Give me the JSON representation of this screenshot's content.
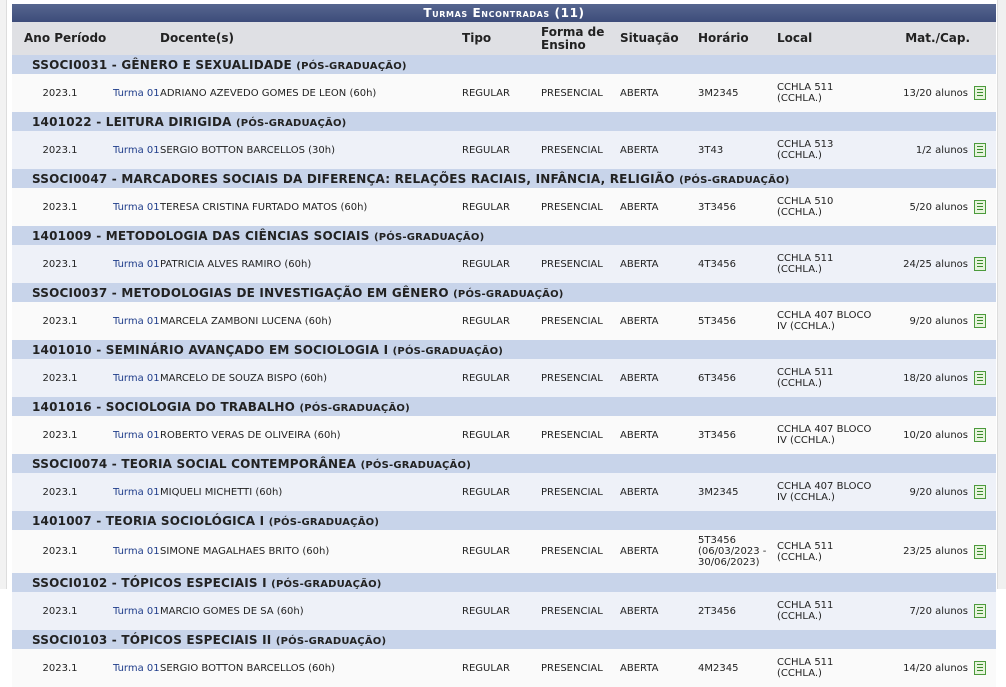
{
  "title": "Turmas Encontradas (11)",
  "headers": {
    "ano": "Ano Período",
    "docente": "Docente(s)",
    "tipo": "Tipo",
    "forma": "Forma de Ensino",
    "situacao": "Situação",
    "horario": "Horário",
    "local": "Local",
    "mat": "Mat./Cap."
  },
  "icon": "report-icon",
  "groups": [
    {
      "name": "SSOCI0031 - GÊNERO E SEXUALIDADE",
      "nivel": "(PÓS-GRADUAÇÃO)",
      "row": {
        "ano": "2023.1",
        "turma": "Turma 01",
        "docente": "ADRIANO AZEVEDO GOMES DE LEON (60h)",
        "tipo": "REGULAR",
        "forma": "PRESENCIAL",
        "situacao": "ABERTA",
        "horario": "3M2345",
        "local": "CCHLA 511 (CCHLA.)",
        "mat": "13/20 alunos"
      }
    },
    {
      "name": "1401022 - LEITURA DIRIGIDA",
      "nivel": "(PÓS-GRADUAÇÃO)",
      "row": {
        "ano": "2023.1",
        "turma": "Turma 01",
        "docente": "SERGIO BOTTON BARCELLOS (30h)",
        "tipo": "REGULAR",
        "forma": "PRESENCIAL",
        "situacao": "ABERTA",
        "horario": "3T43",
        "local": "CCHLA 513 (CCHLA.)",
        "mat": "1/2 alunos"
      }
    },
    {
      "name": "SSOCI0047 - MARCADORES SOCIAIS DA DIFERENÇA: RELAÇÕES RACIAIS, INFÂNCIA, RELIGIÃO",
      "nivel": "(PÓS-GRADUAÇÃO)",
      "row": {
        "ano": "2023.1",
        "turma": "Turma 01",
        "docente": "TERESA CRISTINA FURTADO MATOS (60h)",
        "tipo": "REGULAR",
        "forma": "PRESENCIAL",
        "situacao": "ABERTA",
        "horario": "3T3456",
        "local": "CCHLA 510 (CCHLA.)",
        "mat": "5/20 alunos"
      }
    },
    {
      "name": "1401009 - METODOLOGIA DAS CIÊNCIAS SOCIAIS",
      "nivel": "(PÓS-GRADUAÇÃO)",
      "row": {
        "ano": "2023.1",
        "turma": "Turma 01",
        "docente": "PATRICIA ALVES RAMIRO (60h)",
        "tipo": "REGULAR",
        "forma": "PRESENCIAL",
        "situacao": "ABERTA",
        "horario": "4T3456",
        "local": "CCHLA 511 (CCHLA.)",
        "mat": "24/25 alunos"
      }
    },
    {
      "name": "SSOCI0037 - METODOLOGIAS DE INVESTIGAÇÃO EM GÊNERO",
      "nivel": "(PÓS-GRADUAÇÃO)",
      "row": {
        "ano": "2023.1",
        "turma": "Turma 01",
        "docente": "MARCELA ZAMBONI LUCENA (60h)",
        "tipo": "REGULAR",
        "forma": "PRESENCIAL",
        "situacao": "ABERTA",
        "horario": "5T3456",
        "local": "CCHLA 407 BLOCO IV (CCHLA.)",
        "mat": "9/20 alunos"
      }
    },
    {
      "name": "1401010 - SEMINÁRIO AVANÇADO EM SOCIOLOGIA I",
      "nivel": "(PÓS-GRADUAÇÃO)",
      "row": {
        "ano": "2023.1",
        "turma": "Turma 01",
        "docente": "MARCELO DE SOUZA BISPO (60h)",
        "tipo": "REGULAR",
        "forma": "PRESENCIAL",
        "situacao": "ABERTA",
        "horario": "6T3456",
        "local": "CCHLA 511 (CCHLA.)",
        "mat": "18/20 alunos"
      }
    },
    {
      "name": "1401016 - SOCIOLOGIA DO TRABALHO",
      "nivel": "(PÓS-GRADUAÇÃO)",
      "row": {
        "ano": "2023.1",
        "turma": "Turma 01",
        "docente": "ROBERTO VERAS DE OLIVEIRA (60h)",
        "tipo": "REGULAR",
        "forma": "PRESENCIAL",
        "situacao": "ABERTA",
        "horario": "3T3456",
        "local": "CCHLA 407 BLOCO IV (CCHLA.)",
        "mat": "10/20 alunos"
      }
    },
    {
      "name": "SSOCI0074 - TEORIA SOCIAL CONTEMPORÂNEA",
      "nivel": "(PÓS-GRADUAÇÃO)",
      "row": {
        "ano": "2023.1",
        "turma": "Turma 01",
        "docente": "MIQUELI MICHETTI (60h)",
        "tipo": "REGULAR",
        "forma": "PRESENCIAL",
        "situacao": "ABERTA",
        "horario": "3M2345",
        "local": "CCHLA 407 BLOCO IV (CCHLA.)",
        "mat": "9/20 alunos"
      }
    },
    {
      "name": "1401007 - TEORIA SOCIOLÓGICA I",
      "nivel": "(PÓS-GRADUAÇÃO)",
      "row": {
        "ano": "2023.1",
        "turma": "Turma 01",
        "docente": "SIMONE MAGALHAES BRITO (60h)",
        "tipo": "REGULAR",
        "forma": "PRESENCIAL",
        "situacao": "ABERTA",
        "horario": "5T3456 (06/03/2023 - 30/06/2023)",
        "local": "CCHLA 511 (CCHLA.)",
        "mat": "23/25 alunos"
      }
    },
    {
      "name": "SSOCI0102 - TÓPICOS ESPECIAIS I",
      "nivel": "(PÓS-GRADUAÇÃO)",
      "row": {
        "ano": "2023.1",
        "turma": "Turma 01",
        "docente": "MARCIO GOMES DE SA (60h)",
        "tipo": "REGULAR",
        "forma": "PRESENCIAL",
        "situacao": "ABERTA",
        "horario": "2T3456",
        "local": "CCHLA 511 (CCHLA.)",
        "mat": "7/20 alunos"
      }
    },
    {
      "name": "SSOCI0103 - TÓPICOS ESPECIAIS II",
      "nivel": "(PÓS-GRADUAÇÃO)",
      "row": {
        "ano": "2023.1",
        "turma": "Turma 01",
        "docente": "SERGIO BOTTON BARCELLOS (60h)",
        "tipo": "REGULAR",
        "forma": "PRESENCIAL",
        "situacao": "ABERTA",
        "horario": "4M2345",
        "local": "CCHLA 511 (CCHLA.)",
        "mat": "14/20 alunos"
      }
    }
  ]
}
